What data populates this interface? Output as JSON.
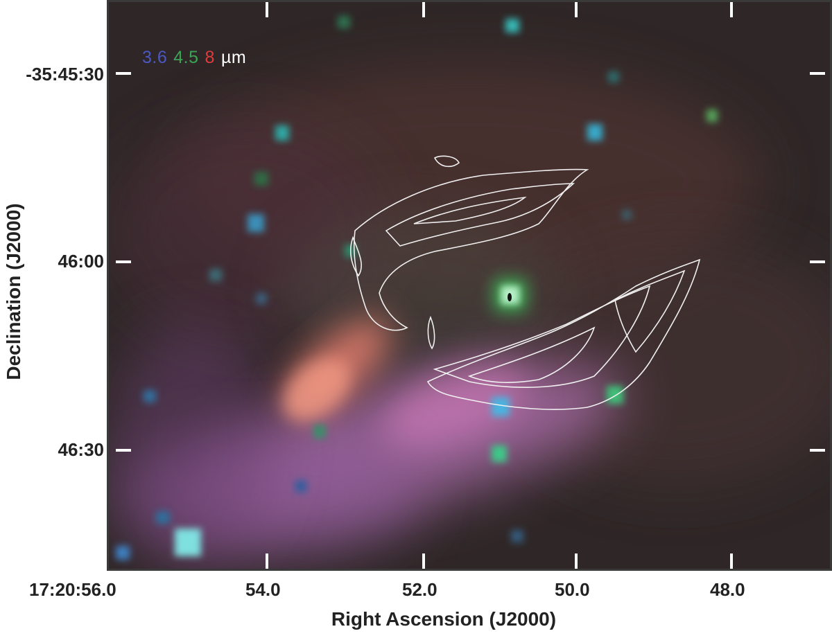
{
  "image": {
    "description_icon": "false-color-infrared-nebula-icon",
    "legend": [
      {
        "text": "3.6",
        "color": "#4a58c4"
      },
      {
        "text": "4.5",
        "color": "#3aa655"
      },
      {
        "text": "8",
        "color": "#e03b3b"
      },
      {
        "text": "µm",
        "color": "#ffffff"
      }
    ]
  },
  "axes": {
    "y_title": "Declination (J2000)",
    "x_title": "Right Ascension (J2000)",
    "y_ticks": [
      "-35:45:30",
      "46:00",
      "46:30"
    ],
    "x_ticks": [
      "17:20:56.0",
      "54.0",
      "52.0",
      "50.0",
      "48.0"
    ]
  }
}
